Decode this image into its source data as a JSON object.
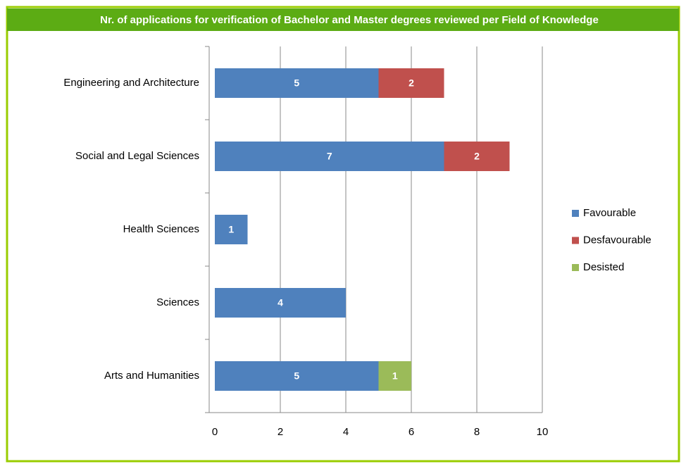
{
  "chart_data": {
    "type": "stacked-bar",
    "title": "Nr. of applications for verification of Bachelor and Master degrees reviewed per Field of Knowledge",
    "categories": [
      "Engineering and Architecture",
      "Social and Legal Sciences",
      "Health Sciences",
      "Sciences",
      "Arts and Humanities"
    ],
    "series": [
      {
        "name": "Favourable",
        "color": "#4f81bd",
        "values": [
          5,
          7,
          1,
          4,
          5
        ]
      },
      {
        "name": "Desfavourable",
        "color": "#c0504d",
        "values": [
          2,
          2,
          null,
          null,
          null
        ]
      },
      {
        "name": "Desisted",
        "color": "#9bbb59",
        "values": [
          null,
          null,
          null,
          null,
          1
        ]
      }
    ],
    "xlim": [
      0,
      10
    ],
    "xticks": [
      0,
      2,
      4,
      6,
      8,
      10
    ],
    "grid": true,
    "legend": "right"
  }
}
